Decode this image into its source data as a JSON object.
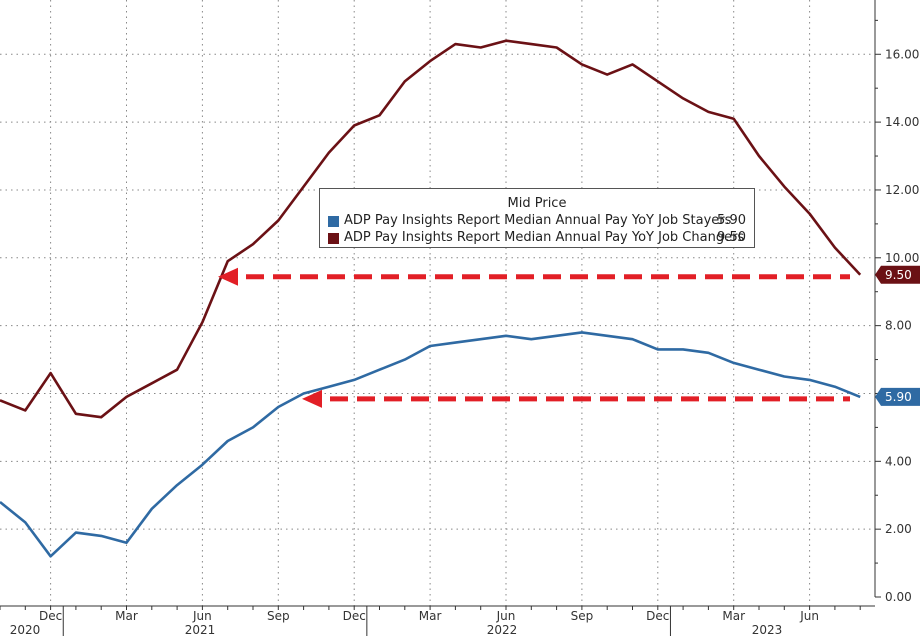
{
  "colors": {
    "stayers": "#2f6aa3",
    "changers": "#6b1115",
    "arrow": "#e21f26",
    "grid": "#888888"
  },
  "legend": {
    "header": "Mid Price",
    "items": [
      {
        "name": "ADP Pay Insights Report Median Annual Pay YoY Job Stayers",
        "value": "5.90"
      },
      {
        "name": "ADP Pay Insights Report Median Annual Pay YoY Job Changers",
        "value": "9.50"
      }
    ]
  },
  "chart_data": {
    "type": "line",
    "x": [
      "2020-10",
      "2020-11",
      "2020-12",
      "2021-01",
      "2021-02",
      "2021-03",
      "2021-04",
      "2021-05",
      "2021-06",
      "2021-07",
      "2021-08",
      "2021-09",
      "2021-10",
      "2021-11",
      "2021-12",
      "2022-01",
      "2022-02",
      "2022-03",
      "2022-04",
      "2022-05",
      "2022-06",
      "2022-07",
      "2022-08",
      "2022-09",
      "2022-10",
      "2022-11",
      "2022-12",
      "2023-01",
      "2023-02",
      "2023-03",
      "2023-04",
      "2023-05",
      "2023-06",
      "2023-07",
      "2023-08"
    ],
    "series": [
      {
        "name": "ADP Pay Insights Report Median Annual Pay YoY Job Stayers",
        "values": [
          2.8,
          2.2,
          1.2,
          1.9,
          1.8,
          1.6,
          2.6,
          3.3,
          3.9,
          4.6,
          5.0,
          5.6,
          6.0,
          6.2,
          6.4,
          6.7,
          7.0,
          7.4,
          7.5,
          7.6,
          7.7,
          7.6,
          7.7,
          7.8,
          7.7,
          7.6,
          7.3,
          7.3,
          7.2,
          6.9,
          6.7,
          6.5,
          6.4,
          6.2,
          5.9
        ]
      },
      {
        "name": "ADP Pay Insights Report Median Annual Pay YoY Job Changers",
        "values": [
          5.8,
          5.5,
          6.6,
          5.4,
          5.3,
          5.9,
          6.3,
          6.7,
          8.1,
          9.9,
          10.4,
          11.1,
          12.1,
          13.1,
          13.9,
          14.2,
          15.2,
          15.8,
          16.3,
          16.2,
          16.4,
          16.3,
          16.2,
          15.7,
          15.4,
          15.7,
          15.2,
          14.7,
          14.3,
          14.1,
          13.0,
          12.1,
          11.3,
          10.3,
          9.5
        ]
      }
    ],
    "y_ticks": [
      "0.00",
      "2.00",
      "4.00",
      "6.00",
      "8.00",
      "10.00",
      "12.00",
      "14.00",
      "16.00"
    ],
    "ylim": [
      0,
      17.6
    ],
    "x_month_labels": [
      "Dec",
      "Mar",
      "Jun",
      "Sep",
      "Dec",
      "Mar",
      "Jun",
      "Sep",
      "Dec",
      "Mar",
      "Jun"
    ],
    "x_year_labels": [
      "2020",
      "2021",
      "2022",
      "2023"
    ],
    "last_values": [
      "5.90",
      "9.50"
    ],
    "annotations": "dashed red arrows pointing left at the current levels of both series",
    "grid": true,
    "legend_position": "center"
  }
}
